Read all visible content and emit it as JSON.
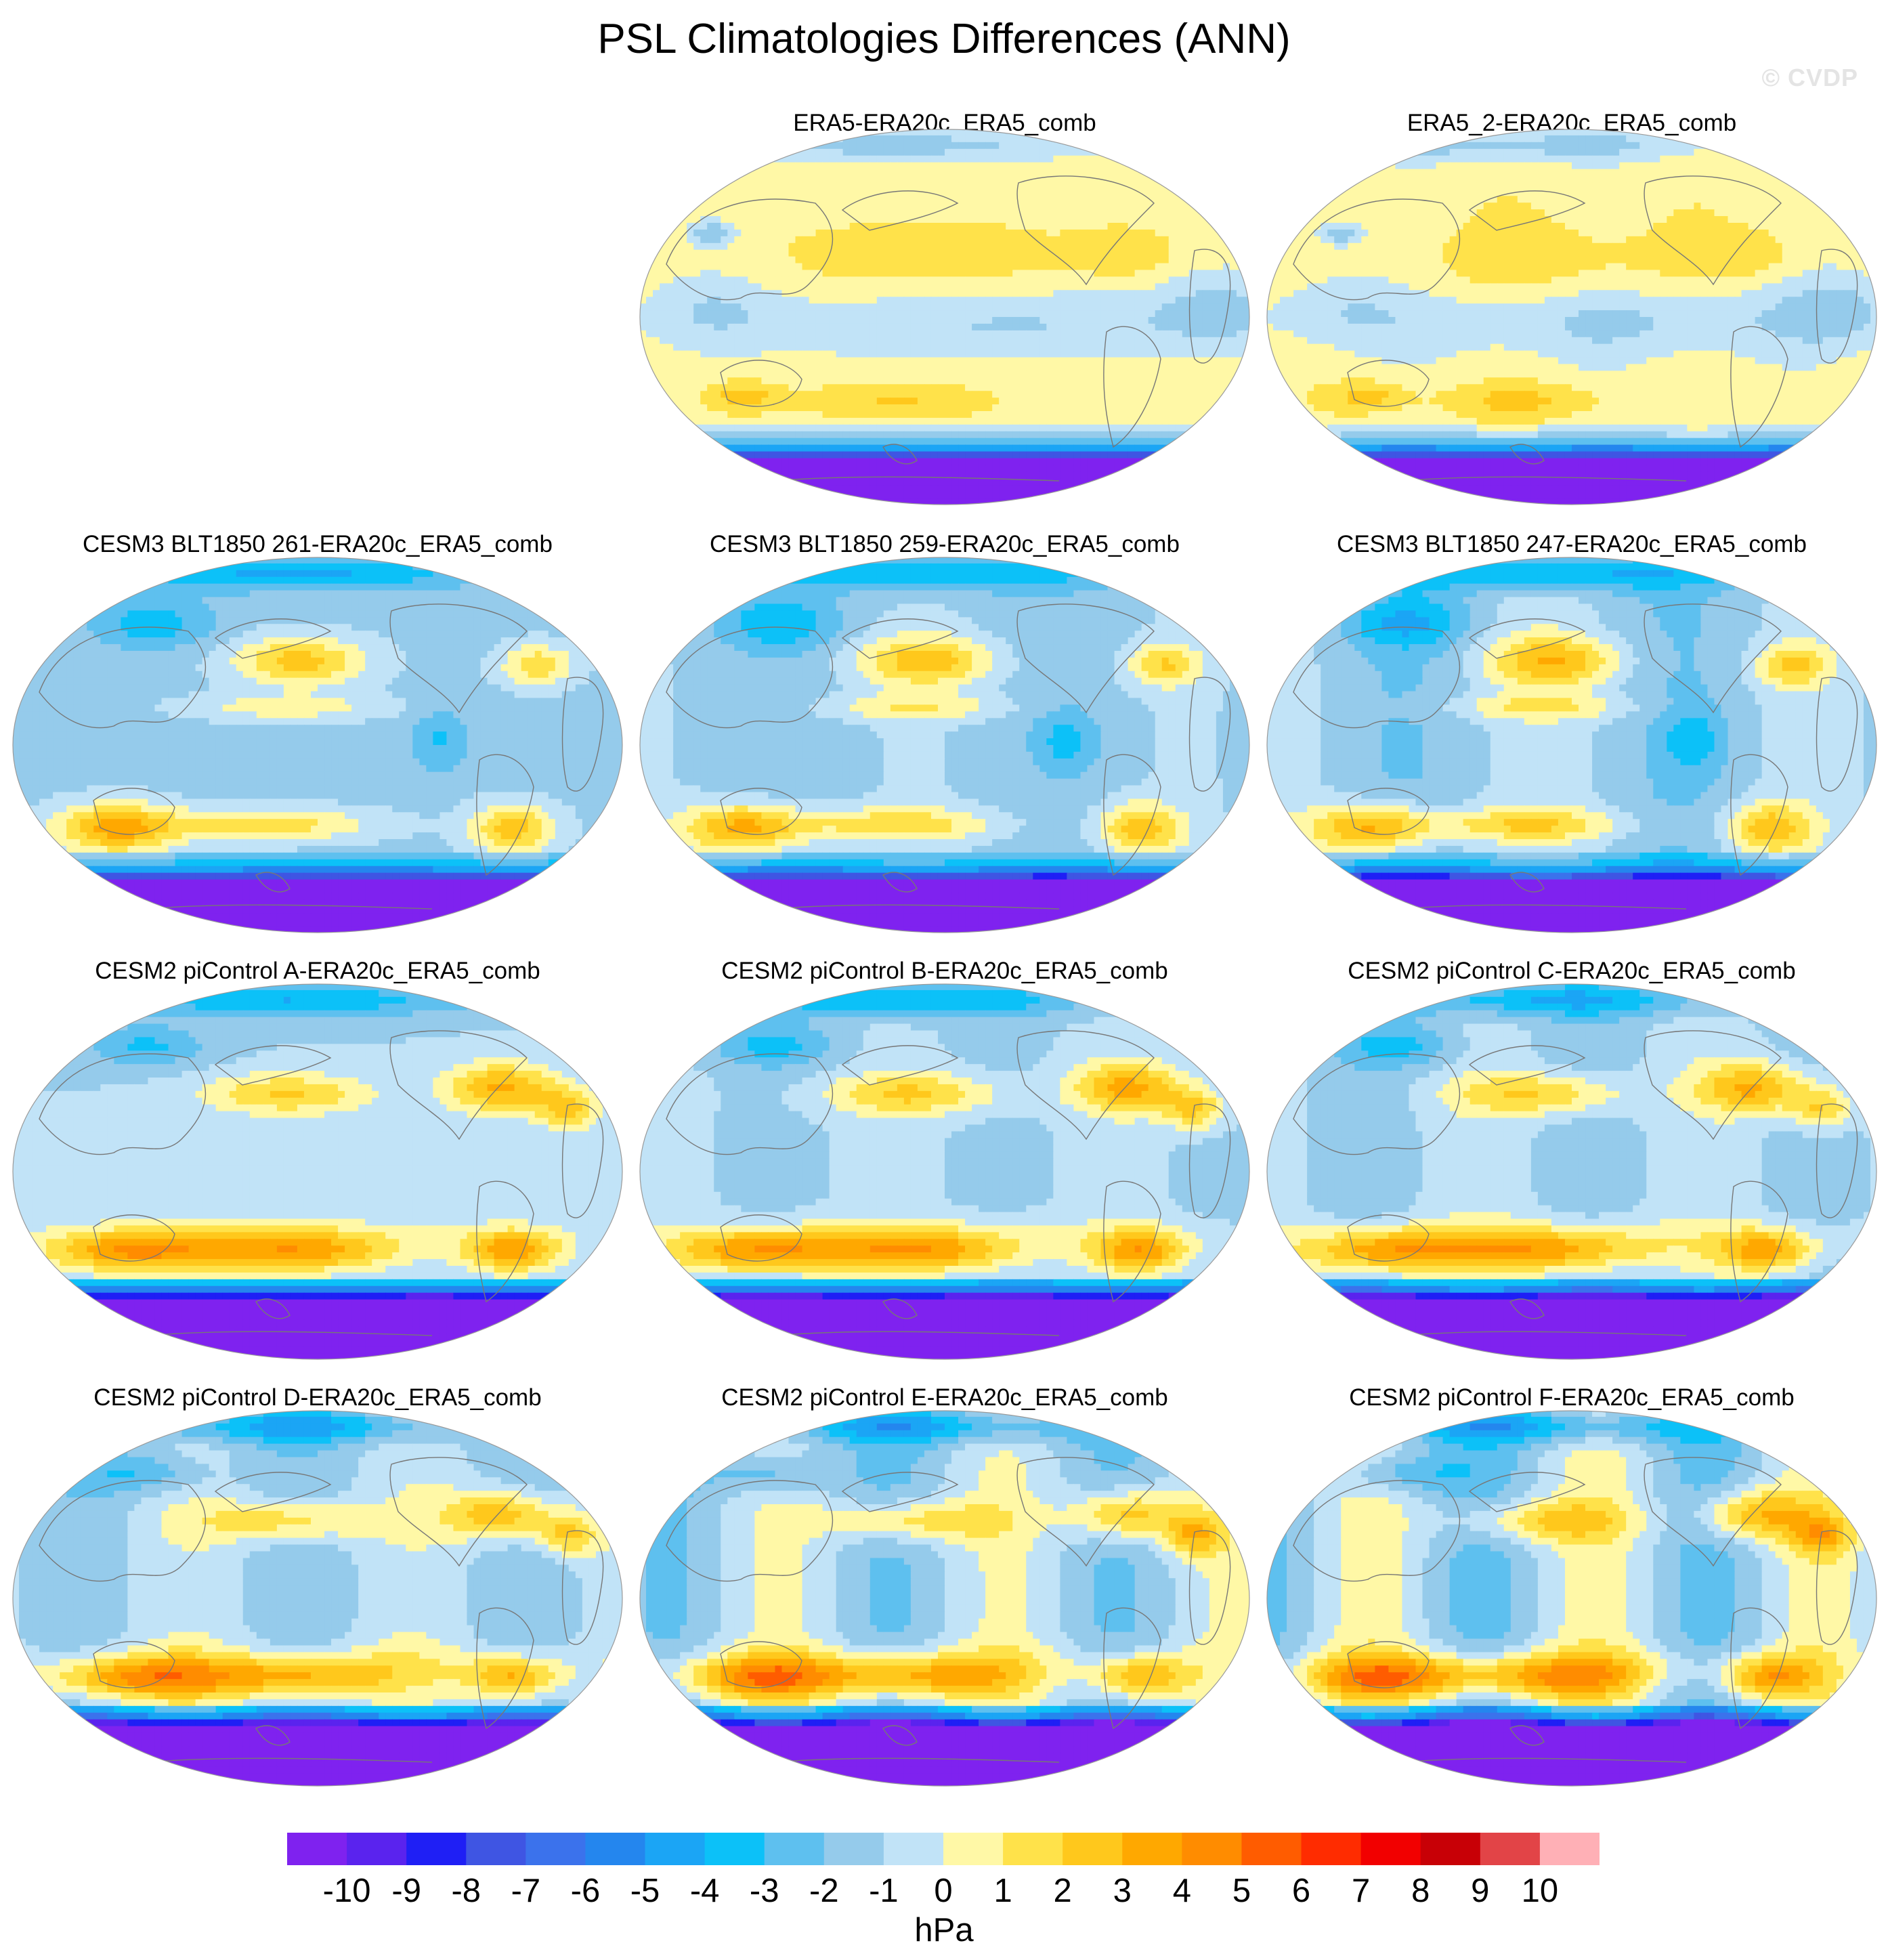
{
  "chart_data": {
    "type": "heatmap",
    "title": "PSL Climatologies Differences (ANN)",
    "watermark": "© CVDP",
    "projection": "Robinson (global, Pacific-centered)",
    "colorbar": {
      "units": "hPa",
      "levels": [
        -10,
        -9,
        -8,
        -7,
        -6,
        -5,
        -4,
        -3,
        -2,
        -1,
        0,
        1,
        2,
        3,
        4,
        5,
        6,
        7,
        8,
        9,
        10
      ],
      "colors": [
        "#7f22ef",
        "#5a23ee",
        "#1f1ff5",
        "#3f55e3",
        "#3b72ec",
        "#2486ee",
        "#1ba5f5",
        "#0cc1f8",
        "#5ec0ef",
        "#95cbeb",
        "#c1e3f7",
        "#fff8a6",
        "#ffe24a",
        "#ffc81c",
        "#ffa800",
        "#ff8c00",
        "#ff5c00",
        "#ff2c00",
        "#f20000",
        "#c80006",
        "#e24447",
        "#ffb0b6"
      ]
    },
    "panels": [
      {
        "title": "ERA5-ERA20c_ERA5_comb",
        "pattern": "obs",
        "variant": 0
      },
      {
        "title": "ERA5_2-ERA20c_ERA5_comb",
        "pattern": "obs",
        "variant": 1
      },
      {
        "title": "CESM3 BLT1850 261-ERA20c_ERA5_comb",
        "pattern": "cesm3",
        "variant": 0
      },
      {
        "title": "CESM3 BLT1850 259-ERA20c_ERA5_comb",
        "pattern": "cesm3",
        "variant": 1
      },
      {
        "title": "CESM3 BLT1850 247-ERA20c_ERA5_comb",
        "pattern": "cesm3",
        "variant": 2
      },
      {
        "title": "CESM2 piControl A-ERA20c_ERA5_comb",
        "pattern": "cesm2",
        "variant": 0
      },
      {
        "title": "CESM2 piControl B-ERA20c_ERA5_comb",
        "pattern": "cesm2",
        "variant": 1
      },
      {
        "title": "CESM2 piControl C-ERA20c_ERA5_comb",
        "pattern": "cesm2",
        "variant": 2
      },
      {
        "title": "CESM2 piControl D-ERA20c_ERA5_comb",
        "pattern": "cesm2",
        "variant": 3
      },
      {
        "title": "CESM2 piControl E-ERA20c_ERA5_comb",
        "pattern": "cesm2",
        "variant": 4
      },
      {
        "title": "CESM2 piControl F-ERA20c_ERA5_comb",
        "pattern": "cesm2",
        "variant": 5
      }
    ]
  }
}
